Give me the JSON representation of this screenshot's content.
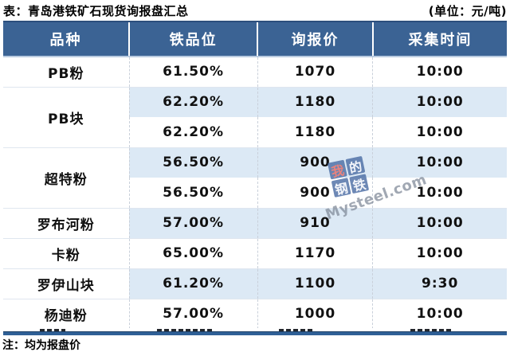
{
  "chart_data": {
    "type": "table",
    "title": "表：青岛港铁矿石现货询报盘汇总",
    "unit": "(单位：元/吨)",
    "note": "注：均为报盘价",
    "columns": [
      "品种",
      "铁品位",
      "询报价",
      "采集时间"
    ],
    "groups": [
      {
        "variety": "PB粉",
        "entries": [
          {
            "grade": "61.50%",
            "price": "1070",
            "time": "10:00"
          }
        ]
      },
      {
        "variety": "PB块",
        "entries": [
          {
            "grade": "62.20%",
            "price": "1180",
            "time": "10:00"
          },
          {
            "grade": "62.20%",
            "price": "1180",
            "time": "10:00"
          }
        ]
      },
      {
        "variety": "超特粉",
        "entries": [
          {
            "grade": "56.50%",
            "price": "900",
            "time": "10:00"
          },
          {
            "grade": "56.50%",
            "price": "900",
            "time": "10:00"
          }
        ]
      },
      {
        "variety": "罗布河粉",
        "entries": [
          {
            "grade": "57.00%",
            "price": "910",
            "time": "10:00"
          }
        ]
      },
      {
        "variety": "卡粉",
        "entries": [
          {
            "grade": "65.00%",
            "price": "1170",
            "time": "10:00"
          }
        ]
      },
      {
        "variety": "罗伊山块",
        "entries": [
          {
            "grade": "61.20%",
            "price": "1100",
            "time": "9:30"
          }
        ]
      },
      {
        "variety": "杨迪粉",
        "entries": [
          {
            "grade": "57.00%",
            "price": "1000",
            "time": "10:00"
          }
        ]
      }
    ],
    "layout_hints": {
      "stripe_pattern": "alternating white/blue starting white",
      "variety_column_bg": "white"
    }
  },
  "watermark": {
    "chars": [
      "我",
      "的",
      "钢",
      "铁"
    ],
    "site": "Mysteel.com"
  },
  "colors": {
    "header_bg": "#3b6394",
    "stripe": "#dce9f5",
    "bottom_bar": "#2f6096",
    "divider": "#dfe6ef",
    "header_text": "#ffffff",
    "body_text": "#111111"
  }
}
